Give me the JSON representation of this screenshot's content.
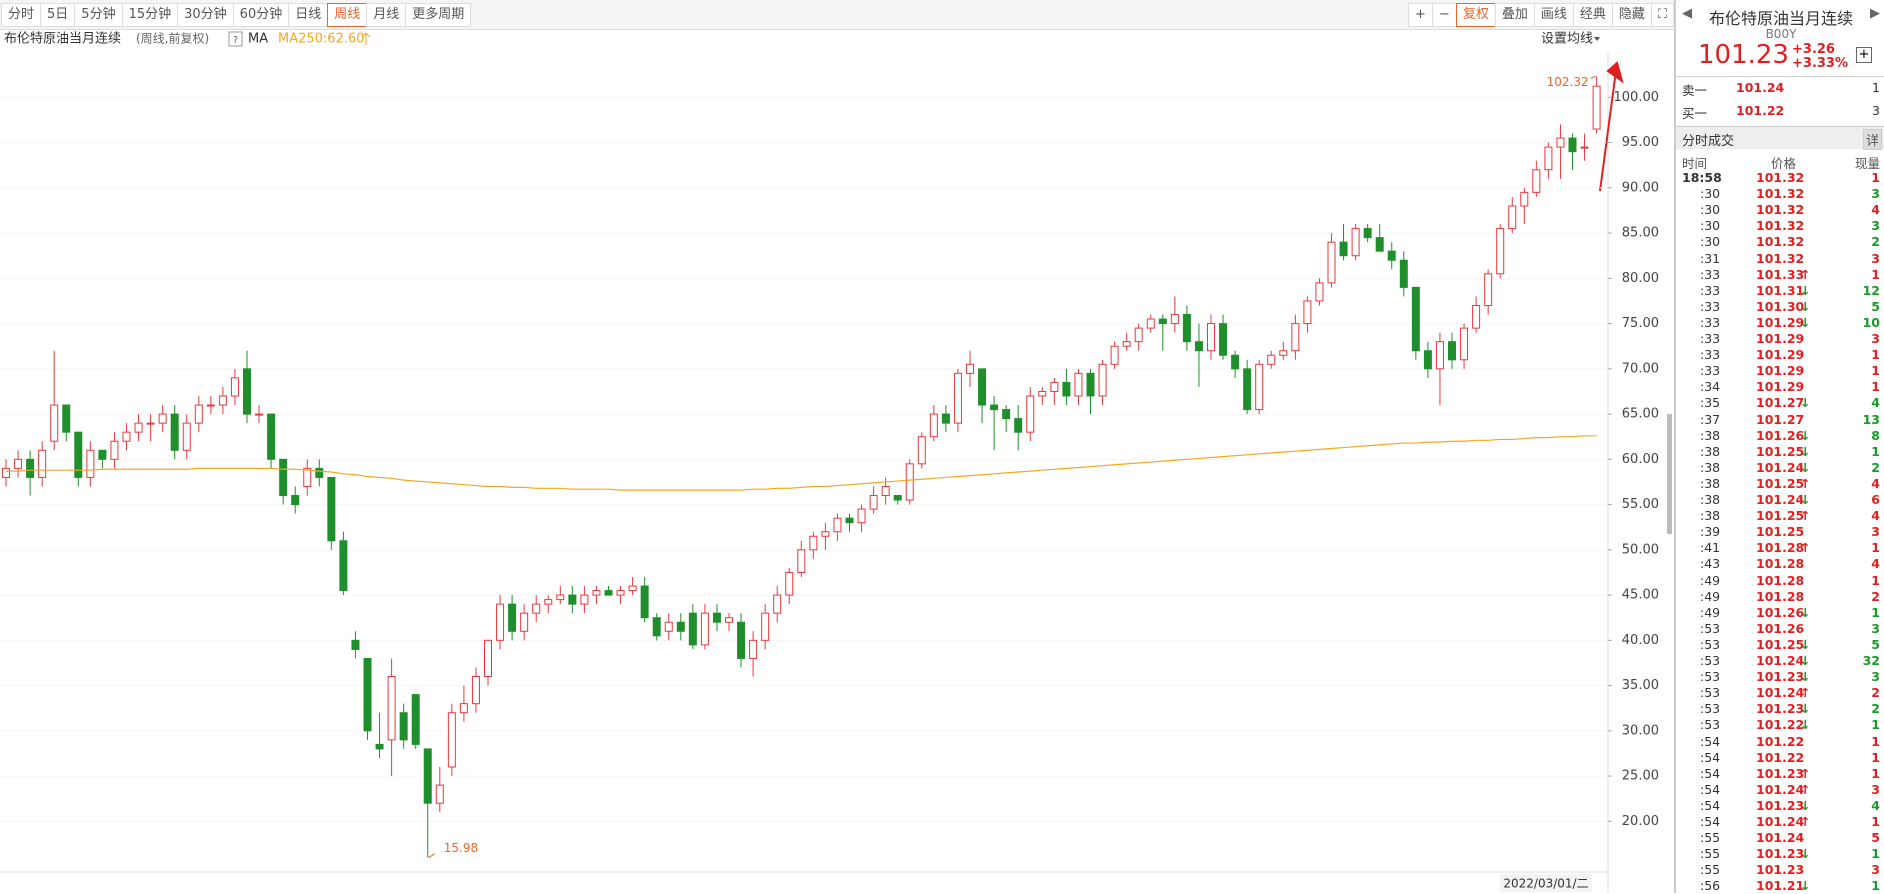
{
  "toolbar": {
    "left": [
      "分时",
      "5日",
      "5分钟",
      "15分钟",
      "30分钟",
      "60分钟",
      "日线",
      "周线",
      "月线",
      "更多周期"
    ],
    "active": 7,
    "right": [
      "复权",
      "叠加",
      "画线",
      "经典",
      "隐藏"
    ],
    "right_active": 0
  },
  "chart_data": {
    "type": "candlestick",
    "title": "布伦特原油当月连续",
    "subtitle": "(周线,前复权)",
    "ma_name": "MA",
    "ma_label": "MA250:62.60",
    "ma_setting": "设置均线",
    "date_label": "2022/03/01/二",
    "up_color": "#e8383d",
    "down_color": "#1f8f2c",
    "grid": true,
    "ylim": [
      14.4,
      104.9
    ],
    "yticks": [
      {
        "value": 20,
        "label": "20.00"
      },
      {
        "value": 25,
        "label": "25.00"
      },
      {
        "value": 30,
        "label": "30.00"
      },
      {
        "value": 35,
        "label": "35.00"
      },
      {
        "value": 40,
        "label": "40.00"
      },
      {
        "value": 45,
        "label": "45.00"
      },
      {
        "value": 50,
        "label": "50.00"
      },
      {
        "value": 55,
        "label": "55.00"
      },
      {
        "value": 60,
        "label": "60.00"
      },
      {
        "value": 65,
        "label": "65.00"
      },
      {
        "value": 70,
        "label": "70.00"
      },
      {
        "value": 75,
        "label": "75.00"
      },
      {
        "value": 80,
        "label": "80.00"
      },
      {
        "value": 85,
        "label": "85.00"
      },
      {
        "value": 90,
        "label": "90.00"
      },
      {
        "value": 95,
        "label": "95.00"
      },
      {
        "value": 100,
        "label": "100.00"
      }
    ],
    "ohlc": [
      [
        58,
        60,
        57,
        59
      ],
      [
        59,
        61,
        58,
        60
      ],
      [
        60,
        61,
        56,
        58
      ],
      [
        58,
        62,
        57,
        61
      ],
      [
        62,
        72,
        61,
        66
      ],
      [
        66,
        66,
        62,
        63
      ],
      [
        63,
        63,
        57,
        58
      ],
      [
        58,
        62,
        57,
        61
      ],
      [
        61,
        61,
        59,
        60
      ],
      [
        60,
        63,
        59,
        62
      ],
      [
        62,
        64,
        61,
        63
      ],
      [
        63,
        65,
        62,
        64
      ],
      [
        64,
        65,
        62,
        64
      ],
      [
        64,
        66,
        63,
        65
      ],
      [
        65,
        66,
        60,
        61
      ],
      [
        61,
        65,
        60,
        64
      ],
      [
        64,
        67,
        63,
        66
      ],
      [
        66,
        67,
        65,
        66
      ],
      [
        66,
        68,
        65,
        67
      ],
      [
        67,
        70,
        66,
        69
      ],
      [
        70,
        72,
        64,
        65
      ],
      [
        65,
        66,
        64,
        65
      ],
      [
        65,
        65,
        59,
        60
      ],
      [
        60,
        60,
        55,
        56
      ],
      [
        56,
        57,
        54,
        55
      ],
      [
        57,
        60,
        56,
        59
      ],
      [
        59,
        60,
        57,
        58
      ],
      [
        58,
        58,
        50,
        51
      ],
      [
        51,
        52,
        45,
        45.5
      ],
      [
        40,
        41,
        38,
        39
      ],
      [
        38,
        38,
        29,
        30
      ],
      [
        28.5,
        32,
        27,
        28
      ],
      [
        29,
        38,
        25,
        36
      ],
      [
        32,
        33,
        28,
        29
      ],
      [
        34,
        34,
        28,
        28.5
      ],
      [
        28,
        28,
        15.98,
        22
      ],
      [
        22,
        26,
        21,
        24
      ],
      [
        26,
        33,
        25,
        32
      ],
      [
        32,
        35,
        31,
        33
      ],
      [
        33,
        37,
        32,
        36
      ],
      [
        36,
        40,
        35,
        40
      ],
      [
        40,
        45,
        39,
        44
      ],
      [
        44,
        45,
        40,
        41
      ],
      [
        41,
        44,
        40,
        43
      ],
      [
        43,
        45,
        42,
        44
      ],
      [
        44,
        45,
        43,
        44.5
      ],
      [
        44.5,
        46,
        44,
        45
      ],
      [
        45,
        46,
        43,
        44
      ],
      [
        44,
        46,
        43,
        45
      ],
      [
        45,
        46,
        44,
        45.5
      ],
      [
        45.5,
        46,
        45,
        45
      ],
      [
        45,
        46,
        44,
        45.5
      ],
      [
        45.5,
        47,
        45,
        46
      ],
      [
        46,
        47,
        42,
        42.5
      ],
      [
        42.5,
        43,
        40,
        40.5
      ],
      [
        41,
        43,
        40,
        42
      ],
      [
        42,
        43,
        40,
        41
      ],
      [
        43,
        44,
        39,
        39.5
      ],
      [
        39.5,
        44,
        39,
        43
      ],
      [
        43,
        44,
        41,
        42
      ],
      [
        42,
        43,
        41,
        42.5
      ],
      [
        42,
        43,
        37,
        38
      ],
      [
        38,
        41,
        36,
        40
      ],
      [
        40,
        44,
        39,
        43
      ],
      [
        43,
        46,
        42,
        45
      ],
      [
        45,
        48,
        44,
        47.5
      ],
      [
        47.5,
        51,
        47,
        50
      ],
      [
        50,
        52,
        49,
        51.5
      ],
      [
        51.5,
        53,
        50,
        52
      ],
      [
        52,
        54,
        51,
        53.5
      ],
      [
        53.5,
        54,
        52,
        53
      ],
      [
        53,
        55,
        52,
        54.5
      ],
      [
        54.5,
        57,
        54,
        56
      ],
      [
        56,
        58,
        55,
        57
      ],
      [
        56,
        56,
        55,
        55.5
      ],
      [
        55.5,
        60,
        55,
        59.5
      ],
      [
        59.5,
        63,
        59,
        62.5
      ],
      [
        62.5,
        66,
        62,
        65
      ],
      [
        65,
        66,
        63,
        64
      ],
      [
        64,
        70,
        63,
        69.5
      ],
      [
        69.5,
        72,
        68,
        70.5
      ],
      [
        70,
        70,
        64,
        66
      ],
      [
        66,
        67,
        61,
        65.5
      ],
      [
        65.5,
        66,
        63,
        64.5
      ],
      [
        64.5,
        66,
        61,
        63
      ],
      [
        63,
        68,
        62,
        67
      ],
      [
        67,
        68,
        66,
        67.5
      ],
      [
        67.5,
        69,
        66,
        68.5
      ],
      [
        68.5,
        70,
        66,
        67
      ],
      [
        67,
        70,
        66,
        69.5
      ],
      [
        69.5,
        70,
        65,
        67
      ],
      [
        67,
        71,
        66,
        70.5
      ],
      [
        70.5,
        73,
        70,
        72.5
      ],
      [
        72.5,
        74,
        72,
        73
      ],
      [
        73,
        75,
        72,
        74.5
      ],
      [
        74.5,
        76,
        74,
        75.5
      ],
      [
        75.5,
        76,
        72,
        75
      ],
      [
        75,
        78,
        74,
        76
      ],
      [
        76,
        77,
        72,
        73
      ],
      [
        73,
        75,
        68,
        72
      ],
      [
        72,
        76,
        71,
        75
      ],
      [
        75,
        76,
        71,
        71.5
      ],
      [
        71.5,
        72,
        69,
        70
      ],
      [
        70,
        71,
        65,
        65.5
      ],
      [
        65.5,
        71,
        65,
        70.5
      ],
      [
        70.5,
        72,
        70,
        71.5
      ],
      [
        71.5,
        73,
        71,
        72
      ],
      [
        72,
        76,
        71,
        75
      ],
      [
        75,
        78,
        74,
        77.5
      ],
      [
        77.5,
        80,
        77,
        79.5
      ],
      [
        79.5,
        85,
        79,
        84
      ],
      [
        84,
        86,
        82,
        82.5
      ],
      [
        82.5,
        86,
        82,
        85.5
      ],
      [
        85.5,
        86,
        84,
        84.5
      ],
      [
        84.5,
        86,
        83,
        83
      ],
      [
        83,
        84,
        81,
        82
      ],
      [
        82,
        83,
        78,
        79
      ],
      [
        79,
        79,
        71,
        72
      ],
      [
        72,
        73,
        69,
        70
      ],
      [
        70,
        74,
        66,
        73
      ],
      [
        73,
        74,
        70,
        71
      ],
      [
        71,
        75,
        70,
        74.5
      ],
      [
        74.5,
        78,
        74,
        77
      ],
      [
        77,
        81,
        76,
        80.5
      ],
      [
        80.5,
        86,
        80,
        85.5
      ],
      [
        85.5,
        89,
        85,
        88
      ],
      [
        88,
        90,
        86,
        89.5
      ],
      [
        89.5,
        93,
        89,
        92
      ],
      [
        92,
        95,
        91,
        94.5
      ],
      [
        94.5,
        97,
        91,
        95.5
      ],
      [
        95.5,
        96,
        92,
        94
      ],
      [
        94.5,
        96,
        93,
        94.5
      ],
      [
        96.5,
        102.32,
        96,
        101.23
      ]
    ],
    "ma_line": {
      "color": "#f5a623",
      "values": [
        58.7,
        58.7,
        58.8,
        58.8,
        58.8,
        58.8,
        58.8,
        58.8,
        58.9,
        58.9,
        58.9,
        58.9,
        58.9,
        58.9,
        58.9,
        58.9,
        59.0,
        59.0,
        59.0,
        59.0,
        59.0,
        59.0,
        59.0,
        58.9,
        58.9,
        58.8,
        58.7,
        58.6,
        58.4,
        58.3,
        58.1,
        58.0,
        57.9,
        57.7,
        57.6,
        57.5,
        57.4,
        57.3,
        57.2,
        57.1,
        57.0,
        57.0,
        56.9,
        56.9,
        56.8,
        56.8,
        56.8,
        56.7,
        56.7,
        56.7,
        56.7,
        56.6,
        56.6,
        56.6,
        56.6,
        56.6,
        56.6,
        56.6,
        56.6,
        56.6,
        56.6,
        56.6,
        56.7,
        56.7,
        56.8,
        56.8,
        56.9,
        57.0,
        57.0,
        57.1,
        57.2,
        57.3,
        57.4,
        57.5,
        57.6,
        57.7,
        57.8,
        57.9,
        58.0,
        58.1,
        58.2,
        58.3,
        58.4,
        58.5,
        58.6,
        58.7,
        58.8,
        58.9,
        59.0,
        59.1,
        59.2,
        59.3,
        59.4,
        59.5,
        59.6,
        59.7,
        59.8,
        59.9,
        60.0,
        60.1,
        60.2,
        60.3,
        60.4,
        60.5,
        60.6,
        60.7,
        60.8,
        60.9,
        61.0,
        61.1,
        61.2,
        61.3,
        61.4,
        61.5,
        61.6,
        61.7,
        61.8,
        61.8,
        61.9,
        61.9,
        62.0,
        62.0,
        62.1,
        62.1,
        62.2,
        62.2,
        62.3,
        62.4,
        62.4,
        62.5,
        62.5,
        62.6,
        62.6
      ]
    },
    "high_index": 132,
    "low_index": 35
  },
  "quote": {
    "name": "布伦特原油当月连续",
    "code": "B00Y",
    "price": "101.23",
    "change": "+3.26",
    "change_pct": "+3.33%",
    "sell_label": "卖一",
    "sell_price": "101.24",
    "sell_vol": 1,
    "buy_label": "买一",
    "buy_price": "101.22",
    "buy_vol": 3
  },
  "trades": {
    "title": "分时成交",
    "detail": "详",
    "headers": [
      "时间",
      "价格",
      "现量"
    ],
    "rows": [
      [
        "18:58",
        "101.32",
        "none",
        1,
        "buy"
      ],
      [
        ":30",
        "101.32",
        "none",
        3,
        "sell"
      ],
      [
        ":30",
        "101.32",
        "none",
        4,
        "buy"
      ],
      [
        ":30",
        "101.32",
        "none",
        3,
        "sell"
      ],
      [
        ":30",
        "101.32",
        "none",
        2,
        "sell"
      ],
      [
        ":31",
        "101.32",
        "none",
        3,
        "buy"
      ],
      [
        ":33",
        "101.33",
        "up",
        1,
        "buy"
      ],
      [
        ":33",
        "101.31",
        "down",
        12,
        "sell"
      ],
      [
        ":33",
        "101.30",
        "down",
        5,
        "sell"
      ],
      [
        ":33",
        "101.29",
        "down",
        10,
        "sell"
      ],
      [
        ":33",
        "101.29",
        "none",
        3,
        "buy"
      ],
      [
        ":33",
        "101.29",
        "none",
        1,
        "buy"
      ],
      [
        ":33",
        "101.29",
        "none",
        1,
        "buy"
      ],
      [
        ":34",
        "101.29",
        "none",
        1,
        "buy"
      ],
      [
        ":35",
        "101.27",
        "down",
        4,
        "sell"
      ],
      [
        ":37",
        "101.27",
        "none",
        13,
        "sell"
      ],
      [
        ":38",
        "101.26",
        "down",
        8,
        "sell"
      ],
      [
        ":38",
        "101.25",
        "down",
        1,
        "sell"
      ],
      [
        ":38",
        "101.24",
        "down",
        2,
        "sell"
      ],
      [
        ":38",
        "101.25",
        "up",
        4,
        "buy"
      ],
      [
        ":38",
        "101.24",
        "down",
        6,
        "buy"
      ],
      [
        ":38",
        "101.25",
        "up",
        4,
        "buy"
      ],
      [
        ":39",
        "101.25",
        "none",
        3,
        "buy"
      ],
      [
        ":41",
        "101.28",
        "up",
        1,
        "buy"
      ],
      [
        ":43",
        "101.28",
        "none",
        4,
        "buy"
      ],
      [
        ":49",
        "101.28",
        "none",
        1,
        "buy"
      ],
      [
        ":49",
        "101.28",
        "none",
        2,
        "buy"
      ],
      [
        ":49",
        "101.26",
        "down",
        1,
        "sell"
      ],
      [
        ":53",
        "101.26",
        "none",
        3,
        "sell"
      ],
      [
        ":53",
        "101.25",
        "down",
        5,
        "sell"
      ],
      [
        ":53",
        "101.24",
        "down",
        32,
        "sell"
      ],
      [
        ":53",
        "101.23",
        "down",
        3,
        "sell"
      ],
      [
        ":53",
        "101.24",
        "up",
        2,
        "buy"
      ],
      [
        ":53",
        "101.23",
        "down",
        2,
        "sell"
      ],
      [
        ":53",
        "101.22",
        "down",
        1,
        "sell"
      ],
      [
        ":54",
        "101.22",
        "none",
        1,
        "buy"
      ],
      [
        ":54",
        "101.22",
        "none",
        1,
        "buy"
      ],
      [
        ":54",
        "101.23",
        "up",
        1,
        "buy"
      ],
      [
        ":54",
        "101.24",
        "up",
        3,
        "buy"
      ],
      [
        ":54",
        "101.23",
        "down",
        4,
        "sell"
      ],
      [
        ":54",
        "101.24",
        "up",
        1,
        "buy"
      ],
      [
        ":55",
        "101.24",
        "none",
        5,
        "buy"
      ],
      [
        ":55",
        "101.23",
        "down",
        1,
        "sell"
      ],
      [
        ":55",
        "101.23",
        "none",
        3,
        "buy"
      ],
      [
        ":56",
        "101.21",
        "down",
        1,
        "sell"
      ]
    ]
  }
}
